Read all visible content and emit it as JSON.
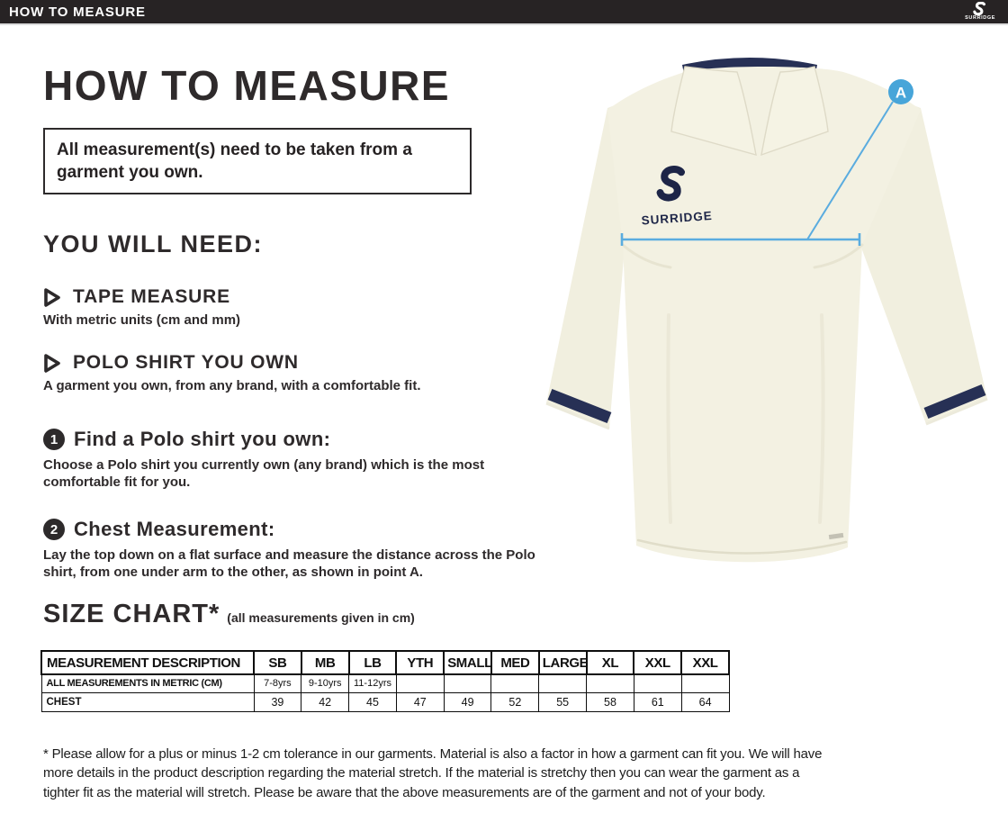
{
  "topbar": {
    "title": "HOW TO MEASURE",
    "brand": "SURRIDGE"
  },
  "page": {
    "title": "HOW TO MEASURE",
    "note": "All measurement(s) need to be taken from a garment you own.",
    "you_will_need": {
      "heading": "YOU WILL NEED:",
      "items": [
        {
          "label": "TAPE MEASURE",
          "description": "With metric units (cm and mm)"
        },
        {
          "label": "POLO SHIRT YOU OWN",
          "description": "A garment you own, from any brand, with a comfortable fit."
        }
      ]
    },
    "steps": [
      {
        "number": "1",
        "title": "Find a Polo shirt you own:",
        "description": "Choose a Polo shirt you currently own (any brand) which is the most comfortable fit for you."
      },
      {
        "number": "2",
        "title": "Chest Measurement:",
        "description": "Lay the top down on a flat surface and measure the distance across the Polo shirt, from one under arm to the other, as shown in point A."
      }
    ],
    "size_chart": {
      "heading": "SIZE CHART*",
      "subheading": "(all measurements given in cm)"
    },
    "footnote": "* Please allow for a plus or minus 1-2 cm tolerance in our garments. Material is also a factor in how a garment can fit you. We will have more details in the product description regarding the material stretch.  If the material is stretchy then you can wear the garment as a tighter fit as the material will stretch.  Please be aware that the above measurements are of the garment and not of your body."
  },
  "figure": {
    "marker_label": "A",
    "brand_logo_text": "SURRIDGE"
  },
  "chart_data": {
    "type": "table",
    "title": "SIZE CHART (all measurements given in cm)",
    "columns": [
      "MEASUREMENT DESCRIPTION",
      "SB",
      "MB",
      "LB",
      "YTH",
      "SMALL",
      "MED",
      "LARGE",
      "XL",
      "XXL",
      "XXL"
    ],
    "rows": [
      {
        "label": "ALL MEASUREMENTS IN METRIC (CM)",
        "values": [
          "7-8yrs",
          "9-10yrs",
          "11-12yrs",
          "",
          "",
          "",
          "",
          "",
          "",
          ""
        ]
      },
      {
        "label": "CHEST",
        "values": [
          "39",
          "42",
          "45",
          "47",
          "49",
          "52",
          "55",
          "58",
          "61",
          "64"
        ]
      }
    ]
  },
  "colors": {
    "topbar_bg": "#272324",
    "text": "#2d2a2b",
    "navy": "#273055",
    "shirt_cream": "#f3f1e2",
    "accent_blue": "#47a5d9",
    "line_blue": "#5aacdf"
  }
}
